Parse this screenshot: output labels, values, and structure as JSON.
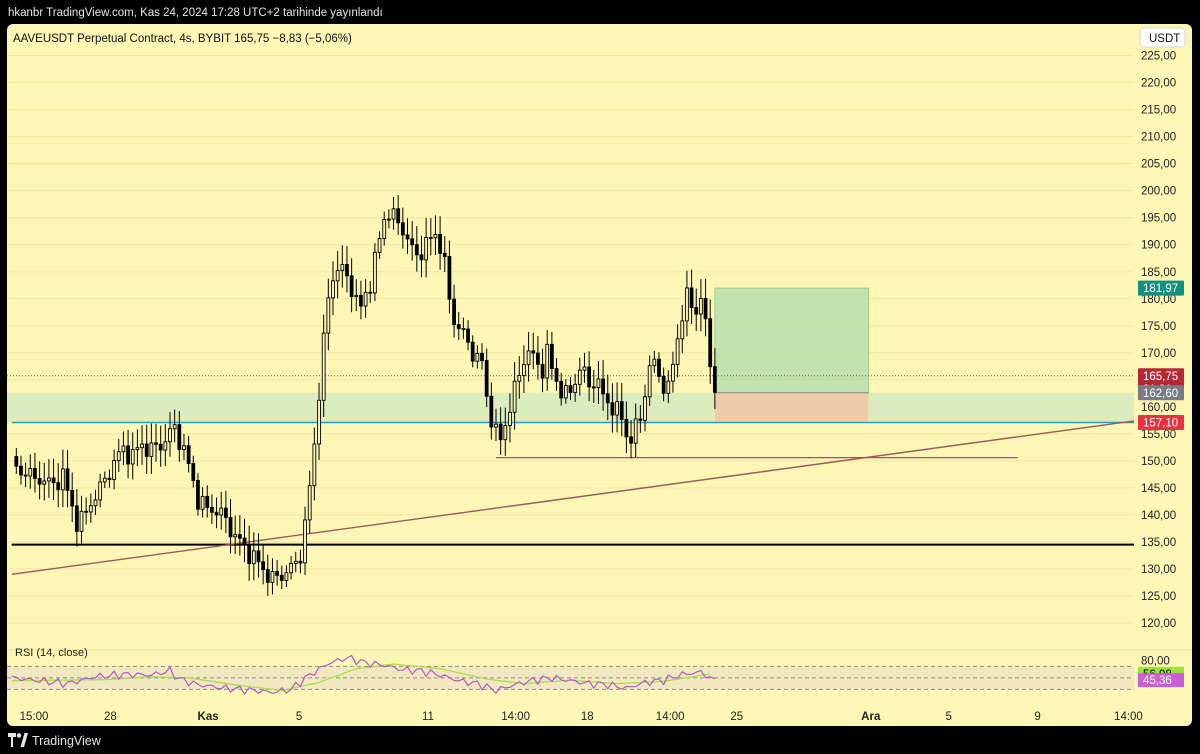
{
  "publisher_line": "hkanbr TradingView.com, Kas 24, 2024 17:28 UTC+2 tarihinde yayınlandı",
  "footer": {
    "brand": "TradingView"
  },
  "colors": {
    "background": "#fdf7b6",
    "candle": "#000000",
    "reward_zone": "#b7dfae",
    "risk_zone": "#f0c8a6",
    "support_line": "#1fa2c4",
    "trend_line": "#9b5a58",
    "rsi_line": "#b05bc4",
    "rsi_ma": "#a7e04a",
    "last_price": "#b22833",
    "target_tag": "#12917f",
    "entry_tag": "#787b86",
    "stop_tag": "#e9323f",
    "rsi_tag": "#9fe03a",
    "rsi_value_tag": "#c85fd6"
  },
  "chart_data": {
    "type": "candlestick",
    "symbol_line": "AAVEUSDT Perpetual Contract, 4s, BYBIT  165,75  −8,83 (−5,06%)",
    "currency_button": "USDT",
    "ylim": [
      115,
      229
    ],
    "y_ticks": [
      "225,00",
      "220,00",
      "215,00",
      "210,00",
      "205,00",
      "200,00",
      "195,00",
      "190,00",
      "185,00",
      "180,00",
      "175,00",
      "170,00",
      "165,00",
      "160,00",
      "155,00",
      "150,00",
      "145,00",
      "140,00",
      "135,00",
      "130,00",
      "125,00",
      "120,00"
    ],
    "x_ticks": [
      {
        "label": "15:00",
        "x": 0
      },
      {
        "label": "28",
        "x": 18.1
      },
      {
        "label": "Kas",
        "x": 38.2
      },
      {
        "label": "5",
        "x": 59.3
      },
      {
        "label": "11",
        "x": 86.4
      },
      {
        "label": "14:00",
        "x": 103.4
      },
      {
        "label": "18",
        "x": 120.5
      },
      {
        "label": "14:00",
        "x": 136.6
      },
      {
        "label": "25",
        "x": 152.6
      },
      {
        "label": "Ara",
        "x": 180.7
      },
      {
        "label": "5",
        "x": 198.8
      },
      {
        "label": "9",
        "x": 217.9
      },
      {
        "label": "14:00",
        "x": 235.0
      }
    ],
    "keypoints": [
      [
        0,
        150
      ],
      [
        2,
        147
      ],
      [
        3,
        149
      ],
      [
        5,
        146
      ],
      [
        7,
        147
      ],
      [
        9,
        145
      ],
      [
        11,
        148
      ],
      [
        12,
        144
      ],
      [
        13,
        141
      ],
      [
        14,
        139
      ],
      [
        16,
        140
      ],
      [
        18,
        144
      ],
      [
        20,
        146
      ],
      [
        22,
        150
      ],
      [
        24,
        152
      ],
      [
        26,
        151
      ],
      [
        28,
        153
      ],
      [
        30,
        152
      ],
      [
        32,
        153
      ],
      [
        34,
        155
      ],
      [
        35,
        156
      ],
      [
        36,
        154
      ],
      [
        37,
        152
      ],
      [
        38,
        149
      ],
      [
        39,
        146
      ],
      [
        40,
        143
      ],
      [
        42,
        141
      ],
      [
        44,
        141
      ],
      [
        46,
        139
      ],
      [
        48,
        136
      ],
      [
        50,
        134
      ],
      [
        52,
        132
      ],
      [
        54,
        130
      ],
      [
        56,
        128
      ],
      [
        58,
        129
      ],
      [
        60,
        130
      ],
      [
        61,
        131
      ],
      [
        62,
        133
      ],
      [
        63,
        138
      ],
      [
        64,
        145
      ],
      [
        65,
        153
      ],
      [
        66,
        163
      ],
      [
        67,
        172
      ],
      [
        68,
        180
      ],
      [
        69,
        184
      ],
      [
        70,
        186
      ],
      [
        71,
        185
      ],
      [
        72,
        184
      ],
      [
        73,
        182
      ],
      [
        74,
        180
      ],
      [
        75,
        178
      ],
      [
        76,
        181
      ],
      [
        77,
        183
      ],
      [
        78,
        187
      ],
      [
        79,
        191
      ],
      [
        80,
        195
      ],
      [
        81,
        196
      ],
      [
        82,
        195
      ],
      [
        83,
        194
      ],
      [
        84,
        193
      ],
      [
        85,
        191
      ],
      [
        86,
        189
      ],
      [
        87,
        188
      ],
      [
        88,
        189
      ],
      [
        89,
        190
      ],
      [
        90,
        191
      ],
      [
        91,
        192
      ],
      [
        92,
        190
      ],
      [
        93,
        186
      ],
      [
        94,
        180
      ],
      [
        95,
        176
      ],
      [
        96,
        175
      ],
      [
        97,
        173
      ],
      [
        98,
        172
      ],
      [
        99,
        170
      ],
      [
        100,
        169
      ],
      [
        101,
        168
      ],
      [
        102,
        162
      ],
      [
        103,
        158
      ],
      [
        104,
        155
      ],
      [
        105,
        154
      ],
      [
        106,
        157
      ],
      [
        107,
        160
      ],
      [
        108,
        163
      ],
      [
        109,
        166
      ],
      [
        110,
        169
      ],
      [
        111,
        170
      ],
      [
        112,
        169
      ],
      [
        113,
        168
      ],
      [
        114,
        167
      ],
      [
        115,
        170
      ],
      [
        116,
        167
      ],
      [
        117,
        165
      ],
      [
        118,
        163
      ],
      [
        119,
        162
      ],
      [
        120,
        163
      ],
      [
        121,
        165
      ],
      [
        122,
        167
      ],
      [
        123,
        166
      ],
      [
        124,
        164
      ],
      [
        125,
        165
      ],
      [
        126,
        164
      ],
      [
        127,
        162
      ],
      [
        128,
        161
      ],
      [
        129,
        160
      ],
      [
        130,
        159
      ],
      [
        131,
        158
      ],
      [
        132,
        155
      ],
      [
        133,
        154
      ],
      [
        134,
        156
      ],
      [
        135,
        158
      ],
      [
        136,
        163
      ],
      [
        137,
        167
      ],
      [
        138,
        168
      ],
      [
        139,
        166
      ],
      [
        140,
        164
      ],
      [
        141,
        163
      ],
      [
        142,
        168
      ],
      [
        143,
        173
      ],
      [
        144,
        177
      ],
      [
        145,
        180
      ],
      [
        146,
        179
      ],
      [
        147,
        178
      ],
      [
        148,
        180
      ],
      [
        149,
        175
      ],
      [
        150,
        168
      ],
      [
        151,
        164
      ]
    ],
    "position": {
      "entry": 162.6,
      "target": 181.97,
      "stop": 157.1,
      "x_start": 151,
      "x_end": 184
    },
    "support_zone": [
      157.1,
      162.6
    ],
    "horizontal_lines": [
      {
        "name": "support",
        "y": 157.1,
        "x_from": 0
      },
      {
        "name": "black-level",
        "y": 134.5,
        "x_from": 0
      },
      {
        "name": "recent-low",
        "y": 150.6,
        "x_from": 104,
        "x_to": 216
      }
    ],
    "trend_line": {
      "x1": 0,
      "y1": 129.0,
      "x2": 241,
      "y2": 157.4
    },
    "last_price_dotted": 165.75,
    "price_tags": [
      {
        "name": "target",
        "value": "181,97",
        "y": 181.97
      },
      {
        "name": "last-price",
        "value": "165,75",
        "y": 165.75,
        "sub": "31:31"
      },
      {
        "name": "entry",
        "value": "162,60",
        "y": 162.6
      },
      {
        "name": "stop",
        "value": "157,10",
        "y": 157.1
      }
    ],
    "rsi": {
      "label": "RSI (14, close)",
      "axis_label": "80,00",
      "ylim": [
        15,
        95
      ],
      "upper": 70,
      "lower": 30,
      "value": "45,36",
      "ma_value": "56,98",
      "keypoints": [
        [
          0,
          50
        ],
        [
          6,
          45
        ],
        [
          12,
          40
        ],
        [
          18,
          52
        ],
        [
          24,
          56
        ],
        [
          30,
          55
        ],
        [
          34,
          62
        ],
        [
          36,
          48
        ],
        [
          40,
          38
        ],
        [
          46,
          32
        ],
        [
          52,
          28
        ],
        [
          56,
          25
        ],
        [
          60,
          30
        ],
        [
          64,
          55
        ],
        [
          68,
          75
        ],
        [
          72,
          85
        ],
        [
          76,
          76
        ],
        [
          80,
          72
        ],
        [
          84,
          64
        ],
        [
          88,
          62
        ],
        [
          92,
          55
        ],
        [
          96,
          45
        ],
        [
          100,
          40
        ],
        [
          104,
          28
        ],
        [
          108,
          38
        ],
        [
          112,
          46
        ],
        [
          116,
          50
        ],
        [
          120,
          45
        ],
        [
          124,
          40
        ],
        [
          128,
          38
        ],
        [
          132,
          32
        ],
        [
          136,
          42
        ],
        [
          140,
          46
        ],
        [
          144,
          56
        ],
        [
          148,
          60
        ],
        [
          151,
          45
        ]
      ],
      "ma_keypoints": [
        [
          0,
          45
        ],
        [
          10,
          46
        ],
        [
          20,
          47
        ],
        [
          30,
          52
        ],
        [
          38,
          50
        ],
        [
          48,
          38
        ],
        [
          58,
          28
        ],
        [
          66,
          42
        ],
        [
          74,
          66
        ],
        [
          82,
          74
        ],
        [
          92,
          66
        ],
        [
          102,
          48
        ],
        [
          110,
          40
        ],
        [
          120,
          46
        ],
        [
          130,
          40
        ],
        [
          140,
          44
        ],
        [
          150,
          57
        ]
      ]
    },
    "x_range": [
      -1,
      241
    ]
  }
}
